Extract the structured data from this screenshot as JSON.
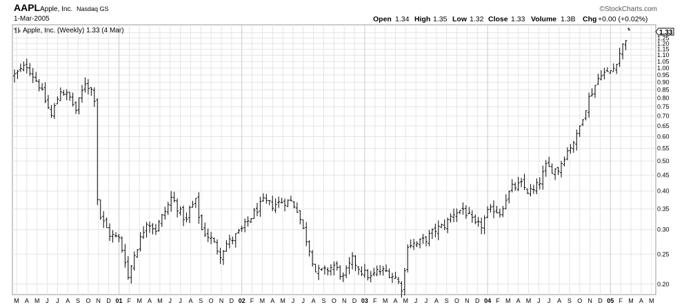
{
  "header": {
    "symbol": "AAPL",
    "company": "Apple, Inc.",
    "exchange": "Nasdaq GS",
    "date": "1-Mar-2005",
    "watermark": "©StockCharts.com",
    "open_label": "Open",
    "open_value": "1.34",
    "high_label": "High",
    "high_value": "1.35",
    "low_label": "Low",
    "low_value": "1.32",
    "close_label": "Close",
    "close_value": "1.33",
    "volume_label": "Volume",
    "volume_value": "1.3B",
    "chg_label": "Chg",
    "chg_value": "+0.00 (+0.02%)"
  },
  "legend": {
    "icon": "ohlc-bar-icon",
    "text": "Apple, Inc. (Weekly) 1.33 (4 Mar)"
  },
  "price_tag": "1.33",
  "colors": {
    "background": "#ffffff",
    "frame": "#999999",
    "grid": "#e4e4e4",
    "bars": "#000000",
    "tag_fill": "#ffffff"
  },
  "chart_data": {
    "type": "ohlc",
    "title": "Apple, Inc. (Weekly) 1.33 (4 Mar)",
    "xlabel": "",
    "ylabel": "",
    "scale": "log",
    "ylim": [
      0.185,
      1.38
    ],
    "y_ticks": [
      1.3,
      1.25,
      1.2,
      1.15,
      1.1,
      1.05,
      1.0,
      0.95,
      0.9,
      0.85,
      0.8,
      0.75,
      0.7,
      0.65,
      0.6,
      0.55,
      0.5,
      0.45,
      0.4,
      0.35,
      0.3,
      0.25,
      0.2
    ],
    "y_tick_labels": [
      "1.30",
      "1.25",
      "1.20",
      "1.15",
      "1.10",
      "1.05",
      "1.00",
      "0.95",
      "0.90",
      "0.85",
      "0.80",
      "0.75",
      "0.70",
      "0.65",
      "0.60",
      "0.55",
      "0.50",
      "0.45",
      "0.40",
      "0.35",
      "0.30",
      "0.25",
      "0.20"
    ],
    "x_tick_labels": [
      "M",
      "A",
      "M",
      "J",
      "J",
      "A",
      "S",
      "O",
      "N",
      "D",
      "01",
      "F",
      "M",
      "A",
      "M",
      "J",
      "J",
      "A",
      "S",
      "O",
      "N",
      "D",
      "02",
      "F",
      "M",
      "A",
      "M",
      "J",
      "J",
      "A",
      "S",
      "O",
      "N",
      "D",
      "03",
      "F",
      "M",
      "A",
      "M",
      "J",
      "J",
      "A",
      "S",
      "O",
      "N",
      "D",
      "04",
      "F",
      "M",
      "A",
      "M",
      "J",
      "J",
      "A",
      "S",
      "O",
      "N",
      "D",
      "05",
      "F",
      "M",
      "A",
      "M"
    ],
    "x_tick_bold": [
      10,
      22,
      34,
      46,
      58
    ],
    "grid": true,
    "legend_position": "top-left",
    "waypoints": [
      [
        0,
        0.95
      ],
      [
        4,
        1.02
      ],
      [
        8,
        0.88
      ],
      [
        12,
        0.7
      ],
      [
        15,
        0.85
      ],
      [
        18,
        0.8
      ],
      [
        20,
        0.73
      ],
      [
        23,
        0.9
      ],
      [
        25,
        0.85
      ],
      [
        26,
        0.8
      ],
      [
        27,
        0.38
      ],
      [
        28,
        0.33
      ],
      [
        31,
        0.29
      ],
      [
        34,
        0.28
      ],
      [
        36,
        0.24
      ],
      [
        37,
        0.21
      ],
      [
        39,
        0.25
      ],
      [
        41,
        0.28
      ],
      [
        43,
        0.32
      ],
      [
        46,
        0.3
      ],
      [
        48,
        0.33
      ],
      [
        50,
        0.36
      ],
      [
        51,
        0.38
      ],
      [
        52,
        0.37
      ],
      [
        54,
        0.34
      ],
      [
        56,
        0.32
      ],
      [
        57,
        0.35
      ],
      [
        59,
        0.37
      ],
      [
        61,
        0.3
      ],
      [
        64,
        0.28
      ],
      [
        67,
        0.25
      ],
      [
        69,
        0.27
      ],
      [
        71,
        0.28
      ],
      [
        74,
        0.3
      ],
      [
        77,
        0.33
      ],
      [
        79,
        0.35
      ],
      [
        81,
        0.37
      ],
      [
        84,
        0.36
      ],
      [
        87,
        0.37
      ],
      [
        90,
        0.37
      ],
      [
        92,
        0.35
      ],
      [
        94,
        0.3
      ],
      [
        96,
        0.26
      ],
      [
        98,
        0.22
      ],
      [
        101,
        0.22
      ],
      [
        104,
        0.23
      ],
      [
        107,
        0.21
      ],
      [
        110,
        0.24
      ],
      [
        113,
        0.22
      ],
      [
        116,
        0.21
      ],
      [
        118,
        0.22
      ],
      [
        121,
        0.22
      ],
      [
        124,
        0.21
      ],
      [
        126,
        0.195
      ],
      [
        127,
        0.22
      ],
      [
        128,
        0.27
      ],
      [
        131,
        0.27
      ],
      [
        134,
        0.28
      ],
      [
        137,
        0.3
      ],
      [
        140,
        0.31
      ],
      [
        143,
        0.34
      ],
      [
        146,
        0.35
      ],
      [
        148,
        0.33
      ],
      [
        150,
        0.31
      ],
      [
        152,
        0.31
      ],
      [
        154,
        0.34
      ],
      [
        156,
        0.35
      ],
      [
        158,
        0.34
      ],
      [
        160,
        0.38
      ],
      [
        162,
        0.41
      ],
      [
        165,
        0.42
      ],
      [
        167,
        0.4
      ],
      [
        169,
        0.4
      ],
      [
        171,
        0.43
      ],
      [
        173,
        0.48
      ],
      [
        175,
        0.47
      ],
      [
        177,
        0.47
      ],
      [
        179,
        0.52
      ],
      [
        181,
        0.56
      ],
      [
        183,
        0.6
      ],
      [
        185,
        0.7
      ],
      [
        187,
        0.8
      ],
      [
        189,
        0.88
      ],
      [
        191,
        0.97
      ],
      [
        193,
        0.96
      ],
      [
        195,
        1.0
      ],
      [
        197,
        1.12
      ],
      [
        199,
        1.25
      ],
      [
        200,
        1.33
      ]
    ],
    "n_bars": 201,
    "last_bar": {
      "open": 1.34,
      "high": 1.35,
      "low": 1.32,
      "close": 1.33,
      "volume": "1.3B"
    }
  }
}
